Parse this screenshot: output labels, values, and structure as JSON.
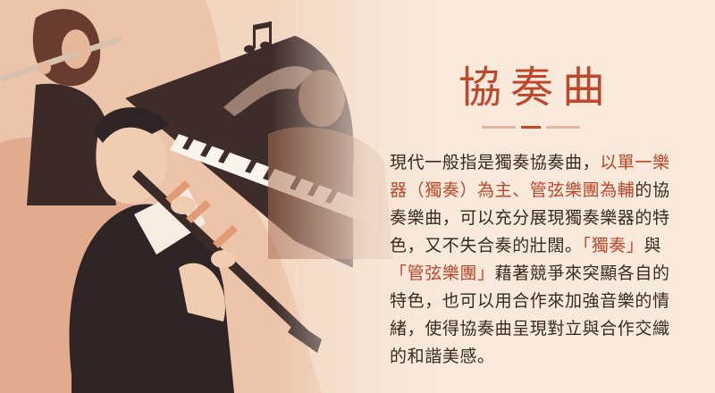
{
  "theme": {
    "accent": "#c0462a",
    "text": "#3a2a22",
    "background": "#f3e3d3"
  },
  "illustration": {
    "label": "flutist-pianist-clarinetist-illustration",
    "icons": [
      "music-note-icon"
    ]
  },
  "title": "協奏曲",
  "paragraph": [
    {
      "text": "現代一般指是獨奏協奏曲，",
      "highlight": false
    },
    {
      "text": "以單一樂器（獨奏）為主、管弦樂團為輔",
      "highlight": true
    },
    {
      "text": "的協奏樂曲，可以充分展現獨奏樂器的特色，又不失合奏的壯闊。",
      "highlight": false
    },
    {
      "text": "「獨奏」",
      "highlight": true
    },
    {
      "text": "與",
      "highlight": false
    },
    {
      "text": "「管弦樂團」",
      "highlight": true
    },
    {
      "text": "藉著競爭來突顯各自的特色，也可以用合作來加強音樂的情緒，使得協奏曲呈現對立與合作交織的和諧美感。",
      "highlight": false
    }
  ]
}
